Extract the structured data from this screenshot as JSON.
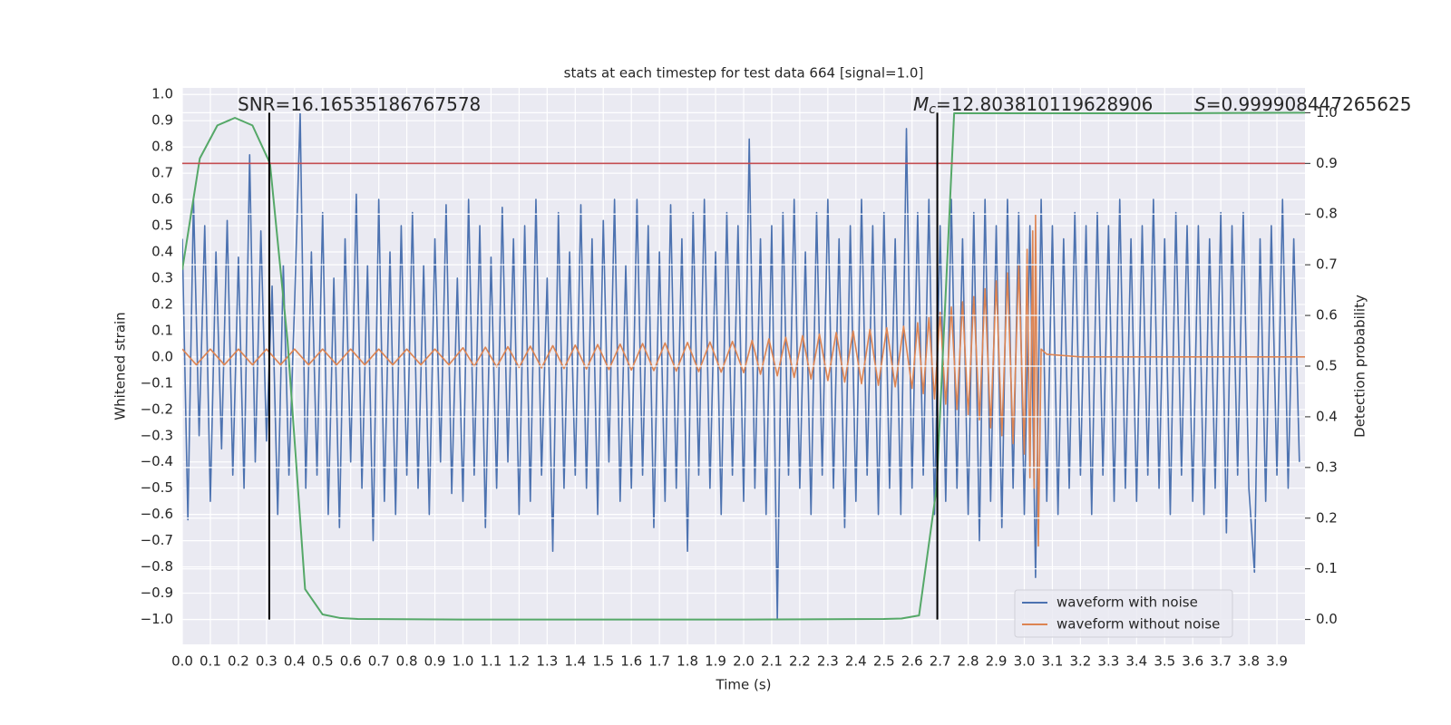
{
  "chart_data": {
    "type": "line",
    "title": "stats at each timestep for test data 664 [signal=1.0]",
    "x_label": "Time (s)",
    "y_label": "Whitened strain",
    "y2_label": "Detection probability",
    "xlim": [
      0,
      4
    ],
    "ylim": [
      -1.095,
      1.025
    ],
    "y2lim": [
      -0.049,
      1.049
    ],
    "grid": true,
    "legend": "lower right",
    "xticks": [
      {
        "value": 0,
        "label": "0.0"
      },
      0.1,
      0.2,
      0.3,
      0.4,
      0.5,
      0.6,
      0.7,
      0.8,
      0.9,
      {
        "value": 1,
        "label": "1.0"
      },
      1.1,
      1.2,
      1.3,
      1.4,
      1.5,
      1.6,
      1.7,
      1.8,
      1.9,
      {
        "value": 2,
        "label": "2.0"
      },
      2.1,
      2.2,
      2.3,
      2.4,
      2.5,
      2.6,
      2.7,
      2.8,
      2.9,
      {
        "value": 3,
        "label": "3.0"
      },
      3.1,
      3.2,
      3.3,
      3.4,
      3.5,
      3.6,
      3.7,
      3.8,
      3.9
    ],
    "yticks": [
      {
        "value": 1,
        "label": "1.0"
      },
      0.9,
      0.8,
      0.7,
      0.6,
      0.5,
      0.4,
      0.3,
      0.2,
      0.1,
      {
        "value": 0,
        "label": "0.0"
      },
      {
        "value": -0.1,
        "label": "−0.1"
      },
      {
        "value": -0.2,
        "label": "−0.2"
      },
      {
        "value": -0.3,
        "label": "−0.3"
      },
      {
        "value": -0.4,
        "label": "−0.4"
      },
      {
        "value": -0.5,
        "label": "−0.5"
      },
      {
        "value": -0.6,
        "label": "−0.6"
      },
      {
        "value": -0.7,
        "label": "−0.7"
      },
      {
        "value": -0.8,
        "label": "−0.8"
      },
      {
        "value": -0.9,
        "label": "−0.9"
      },
      {
        "value": -1,
        "label": "−1.0"
      }
    ],
    "y2ticks": [
      {
        "value": 0,
        "label": "0.0"
      },
      0.1,
      0.2,
      0.3,
      0.4,
      0.5,
      0.6,
      0.7,
      0.8,
      0.9,
      {
        "value": 1,
        "label": "1.0"
      }
    ],
    "series": [
      {
        "name": "waveform with noise",
        "color": "#4c72b0",
        "x": [
          0,
          0.02,
          0.04,
          0.06,
          0.08,
          0.1,
          0.12,
          0.14,
          0.16,
          0.18,
          0.2,
          0.22,
          0.24,
          0.26,
          0.28,
          0.3,
          0.32,
          0.34,
          0.36,
          0.38,
          0.4,
          0.42,
          0.44,
          0.46,
          0.48,
          0.5,
          0.52,
          0.54,
          0.56,
          0.58,
          0.6,
          0.62,
          0.64,
          0.66,
          0.68,
          0.7,
          0.72,
          0.74,
          0.76,
          0.78,
          0.8,
          0.82,
          0.84,
          0.86,
          0.88,
          0.9,
          0.92,
          0.94,
          0.96,
          0.98,
          1,
          1.02,
          1.04,
          1.06,
          1.08,
          1.1,
          1.12,
          1.14,
          1.16,
          1.18,
          1.2,
          1.22,
          1.24,
          1.26,
          1.28,
          1.3,
          1.32,
          1.34,
          1.36,
          1.38,
          1.4,
          1.42,
          1.44,
          1.46,
          1.48,
          1.5,
          1.52,
          1.54,
          1.56,
          1.58,
          1.6,
          1.62,
          1.64,
          1.66,
          1.68,
          1.7,
          1.72,
          1.74,
          1.76,
          1.78,
          1.8,
          1.82,
          1.84,
          1.86,
          1.88,
          1.9,
          1.92,
          1.94,
          1.96,
          1.98,
          2,
          2.02,
          2.04,
          2.06,
          2.08,
          2.1,
          2.12,
          2.14,
          2.16,
          2.18,
          2.2,
          2.22,
          2.24,
          2.26,
          2.28,
          2.3,
          2.32,
          2.34,
          2.36,
          2.38,
          2.4,
          2.42,
          2.44,
          2.46,
          2.48,
          2.5,
          2.52,
          2.54,
          2.56,
          2.58,
          2.6,
          2.62,
          2.64,
          2.66,
          2.68,
          2.7,
          2.72,
          2.74,
          2.76,
          2.78,
          2.8,
          2.82,
          2.84,
          2.86,
          2.88,
          2.9,
          2.92,
          2.94,
          2.96,
          2.98,
          3,
          3.02,
          3.04,
          3.06,
          3.08,
          3.1,
          3.12,
          3.14,
          3.16,
          3.18,
          3.2,
          3.22,
          3.24,
          3.26,
          3.28,
          3.3,
          3.32,
          3.34,
          3.36,
          3.38,
          3.4,
          3.42,
          3.44,
          3.46,
          3.48,
          3.5,
          3.52,
          3.54,
          3.56,
          3.58,
          3.6,
          3.62,
          3.64,
          3.66,
          3.68,
          3.7,
          3.72,
          3.74,
          3.76,
          3.78,
          3.8,
          3.82,
          3.84,
          3.86,
          3.88,
          3.9,
          3.92,
          3.94,
          3.96,
          3.98
        ],
        "values": [
          0.45,
          -0.62,
          0.6,
          -0.3,
          0.5,
          -0.55,
          0.4,
          -0.35,
          0.52,
          -0.45,
          0.38,
          -0.5,
          0.77,
          -0.4,
          0.48,
          -0.32,
          0.27,
          -0.6,
          0.35,
          -0.45,
          0.2,
          0.93,
          -0.5,
          0.4,
          -0.45,
          0.55,
          -0.6,
          0.3,
          -0.65,
          0.45,
          -0.4,
          0.62,
          -0.5,
          0.35,
          -0.7,
          0.6,
          -0.55,
          0.4,
          -0.6,
          0.5,
          -0.45,
          0.55,
          -0.5,
          0.35,
          -0.6,
          0.45,
          -0.4,
          0.58,
          -0.52,
          0.3,
          -0.55,
          0.6,
          -0.45,
          0.5,
          -0.65,
          0.38,
          -0.5,
          0.57,
          -0.4,
          0.45,
          -0.6,
          0.5,
          -0.55,
          0.6,
          -0.45,
          0.3,
          -0.74,
          0.55,
          -0.5,
          0.4,
          -0.45,
          0.58,
          -0.5,
          0.45,
          -0.6,
          0.52,
          -0.4,
          0.6,
          -0.55,
          0.35,
          -0.5,
          0.6,
          -0.45,
          0.5,
          -0.65,
          0.4,
          -0.55,
          0.58,
          -0.5,
          0.45,
          -0.74,
          0.55,
          -0.45,
          0.6,
          -0.5,
          0.4,
          -0.6,
          0.55,
          -0.45,
          0.5,
          -0.55,
          0.83,
          -0.5,
          0.45,
          -0.6,
          0.5,
          -1.0,
          0.55,
          -0.45,
          0.6,
          -0.5,
          0.4,
          -0.6,
          0.55,
          -0.45,
          0.6,
          -0.5,
          0.45,
          -0.65,
          0.5,
          -0.55,
          0.6,
          -0.45,
          0.5,
          -0.6,
          0.55,
          -0.5,
          0.45,
          -0.6,
          0.87,
          -0.5,
          0.55,
          -0.45,
          0.6,
          -0.6,
          0.5,
          -0.55,
          0.6,
          -0.5,
          0.45,
          -0.6,
          0.55,
          -0.7,
          0.6,
          -0.55,
          0.5,
          -0.65,
          0.6,
          -0.5,
          0.55,
          -0.6,
          0.5,
          -0.84,
          0.6,
          -0.55,
          0.5,
          -0.6,
          0.45,
          -0.5,
          0.55,
          -0.45,
          0.5,
          -0.6,
          0.55,
          -0.45,
          0.5,
          -0.55,
          0.6,
          -0.5,
          0.45,
          -0.55,
          0.5,
          -0.45,
          0.6,
          -0.5,
          0.45,
          -0.6,
          0.55,
          -0.45,
          0.5,
          -0.55,
          0.5,
          -0.6,
          0.45,
          -0.5,
          0.55,
          -0.67,
          0.5,
          -0.45,
          0.55,
          -0.5,
          -0.82,
          0.45,
          -0.55,
          0.5,
          -0.45,
          0.6,
          -0.5,
          0.45,
          -0.4
        ]
      },
      {
        "name": "waveform without noise",
        "color": "#dd8452",
        "x": [
          0,
          0.05,
          0.1,
          0.15,
          0.2,
          0.25,
          0.3,
          0.35,
          0.4,
          0.45,
          0.5,
          0.55,
          0.6,
          0.65,
          0.7,
          0.75,
          0.8,
          0.85,
          0.9,
          0.95,
          1,
          1.04,
          1.08,
          1.12,
          1.16,
          1.2,
          1.24,
          1.28,
          1.32,
          1.36,
          1.4,
          1.44,
          1.48,
          1.52,
          1.56,
          1.6,
          1.64,
          1.68,
          1.72,
          1.76,
          1.8,
          1.84,
          1.88,
          1.92,
          1.96,
          2,
          2.03,
          2.06,
          2.09,
          2.12,
          2.15,
          2.18,
          2.21,
          2.24,
          2.27,
          2.3,
          2.33,
          2.36,
          2.39,
          2.42,
          2.45,
          2.48,
          2.51,
          2.54,
          2.57,
          2.6,
          2.62,
          2.64,
          2.66,
          2.68,
          2.7,
          2.72,
          2.74,
          2.76,
          2.78,
          2.8,
          2.82,
          2.84,
          2.86,
          2.88,
          2.9,
          2.92,
          2.94,
          2.96,
          2.98,
          3,
          3.01,
          3.02,
          3.03,
          3.035,
          3.04,
          3.05,
          3.06,
          3.08,
          3.2,
          4
        ],
        "values": [
          0.03,
          -0.03,
          0.03,
          -0.03,
          0.03,
          -0.03,
          0.03,
          -0.03,
          0.03,
          -0.03,
          0.03,
          -0.03,
          0.03,
          -0.03,
          0.03,
          -0.03,
          0.03,
          -0.03,
          0.03,
          -0.03,
          0.035,
          -0.036,
          0.037,
          -0.038,
          0.039,
          -0.04,
          0.041,
          -0.042,
          0.043,
          -0.044,
          0.045,
          -0.046,
          0.047,
          -0.048,
          0.049,
          -0.05,
          0.051,
          -0.052,
          0.053,
          -0.054,
          0.055,
          -0.056,
          0.057,
          -0.058,
          0.059,
          -0.06,
          0.063,
          -0.066,
          0.069,
          -0.072,
          0.075,
          -0.078,
          0.081,
          -0.084,
          0.087,
          -0.09,
          0.093,
          -0.096,
          0.099,
          -0.102,
          0.105,
          -0.108,
          0.111,
          -0.114,
          0.117,
          -0.12,
          0.13,
          -0.14,
          0.15,
          -0.16,
          0.17,
          -0.18,
          0.19,
          -0.2,
          0.21,
          -0.22,
          0.23,
          -0.24,
          0.26,
          -0.27,
          0.29,
          -0.3,
          0.32,
          -0.33,
          0.35,
          -0.37,
          0.41,
          -0.46,
          0.48,
          -0.5,
          0.54,
          -0.72,
          0.03,
          0.01,
          0,
          0
        ]
      },
      {
        "color": "#55a868",
        "axis": "y2",
        "x": [
          0,
          0.0625,
          0.125,
          0.1875,
          0.25,
          0.3125,
          0.375,
          0.4375,
          0.5,
          0.5625,
          0.625,
          1,
          2,
          2.5,
          2.5625,
          2.625,
          2.6875,
          2.75,
          3,
          3.5,
          4
        ],
        "values": [
          0.69,
          0.91,
          0.975,
          0.99,
          0.975,
          0.9,
          0.55,
          0.06,
          0.01,
          0.003,
          0.001,
          0,
          0,
          0.001,
          0.002,
          0.008,
          0.26,
          0.999,
          0.999,
          0.999,
          1
        ]
      }
    ],
    "hlines": [
      {
        "y": 0.9,
        "axis": "y2",
        "color": "#c44e52"
      }
    ],
    "vlines": [
      {
        "x": 0.31,
        "ymin": 0,
        "ymax": 1,
        "axis": "y2",
        "color": "#000000"
      },
      {
        "x": 2.69,
        "ymin": 0,
        "ymax": 1,
        "axis": "y2",
        "color": "#000000"
      }
    ],
    "annotations": [
      {
        "text": "SNR=16.16535186767578"
      },
      {
        "symbol": "M",
        "subscript": "c",
        "text": "=12.803810119628906"
      },
      {
        "symbol": "S",
        "text": "=0.999908447265625"
      }
    ]
  }
}
